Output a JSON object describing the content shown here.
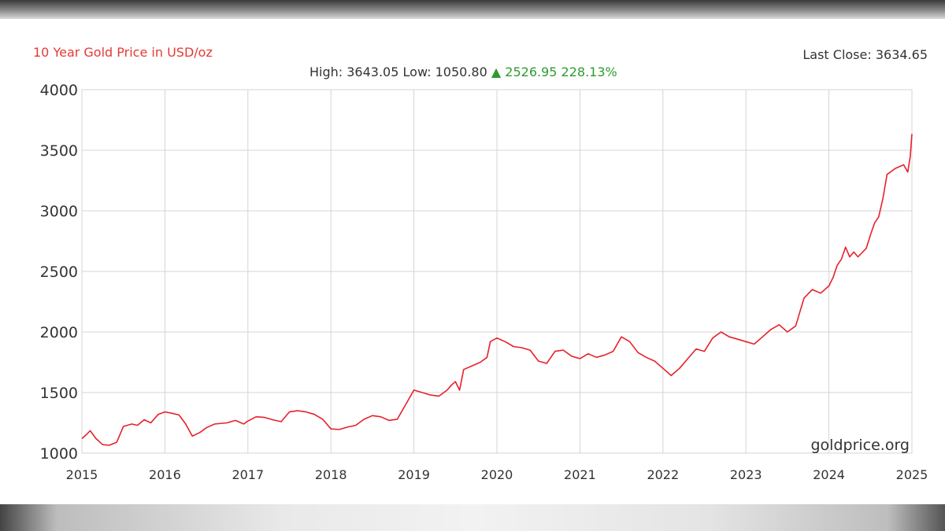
{
  "chart_data": {
    "type": "line",
    "title": "10 Year Gold Price in USD/oz",
    "last_close_label": "Last Close: 3634.65",
    "stats": {
      "high_label": "High: 3643.05",
      "low_label": "Low: 1050.80",
      "change_arrow": "▲",
      "change_label": "2526.95 228.13%"
    },
    "watermark": "goldprice.org",
    "xlim": [
      2015,
      2025
    ],
    "ylim": [
      1000,
      4000
    ],
    "x_ticks": [
      "2015",
      "2016",
      "2017",
      "2018",
      "2019",
      "2020",
      "2021",
      "2022",
      "2023",
      "2024",
      "2025"
    ],
    "y_ticks": [
      "1000",
      "1500",
      "2000",
      "2500",
      "3000",
      "3500",
      "4000"
    ],
    "grid": true,
    "series": [
      {
        "color": "#e8202a",
        "x": [
          2015.0,
          2015.05,
          2015.1,
          2015.17,
          2015.25,
          2015.33,
          2015.42,
          2015.5,
          2015.6,
          2015.67,
          2015.75,
          2015.83,
          2015.92,
          2016.0,
          2016.08,
          2016.17,
          2016.25,
          2016.33,
          2016.42,
          2016.5,
          2016.6,
          2016.75,
          2016.85,
          2016.95,
          2017.0,
          2017.1,
          2017.2,
          2017.3,
          2017.4,
          2017.5,
          2017.6,
          2017.7,
          2017.8,
          2017.9,
          2018.0,
          2018.1,
          2018.2,
          2018.3,
          2018.4,
          2018.5,
          2018.6,
          2018.7,
          2018.8,
          2018.9,
          2019.0,
          2019.1,
          2019.2,
          2019.3,
          2019.4,
          2019.45,
          2019.5,
          2019.55,
          2019.6,
          2019.7,
          2019.8,
          2019.88,
          2019.92,
          2020.0,
          2020.1,
          2020.2,
          2020.3,
          2020.4,
          2020.5,
          2020.6,
          2020.7,
          2020.8,
          2020.9,
          2021.0,
          2021.1,
          2021.2,
          2021.3,
          2021.4,
          2021.5,
          2021.6,
          2021.7,
          2021.8,
          2021.9,
          2022.0,
          2022.1,
          2022.2,
          2022.3,
          2022.4,
          2022.5,
          2022.6,
          2022.7,
          2022.8,
          2022.9,
          2023.0,
          2023.1,
          2023.2,
          2023.3,
          2023.4,
          2023.5,
          2023.6,
          2023.7,
          2023.8,
          2023.9,
          2024.0,
          2024.05,
          2024.1,
          2024.15,
          2024.2,
          2024.25,
          2024.3,
          2024.35,
          2024.45,
          2024.5,
          2024.55,
          2024.6,
          2024.65,
          2024.7,
          2024.8,
          2024.9,
          2024.95,
          2024.98,
          2025.0
        ],
        "values": [
          1120,
          1150,
          1185,
          1120,
          1070,
          1065,
          1090,
          1220,
          1240,
          1230,
          1275,
          1250,
          1320,
          1340,
          1330,
          1315,
          1240,
          1140,
          1170,
          1210,
          1240,
          1250,
          1270,
          1240,
          1265,
          1300,
          1295,
          1275,
          1260,
          1340,
          1350,
          1340,
          1320,
          1280,
          1200,
          1195,
          1215,
          1230,
          1280,
          1310,
          1300,
          1270,
          1280,
          1400,
          1520,
          1500,
          1480,
          1470,
          1520,
          1560,
          1590,
          1520,
          1690,
          1720,
          1750,
          1790,
          1920,
          1950,
          1920,
          1880,
          1870,
          1850,
          1760,
          1740,
          1840,
          1850,
          1800,
          1780,
          1820,
          1790,
          1810,
          1840,
          1960,
          1920,
          1830,
          1790,
          1760,
          1700,
          1640,
          1700,
          1780,
          1860,
          1840,
          1950,
          2000,
          1960,
          1940,
          1920,
          1900,
          1960,
          2020,
          2060,
          2000,
          2050,
          2280,
          2350,
          2320,
          2380,
          2450,
          2550,
          2600,
          2700,
          2620,
          2660,
          2620,
          2690,
          2800,
          2900,
          2950,
          3100,
          3300,
          3350,
          3380,
          3320,
          3450,
          3634.65
        ]
      }
    ]
  }
}
